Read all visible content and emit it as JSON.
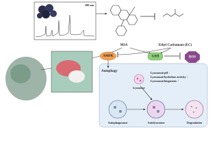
{
  "chromatogram": {
    "wavelength": "280 nm"
  },
  "nodes": [
    {
      "label": "M3A"
    },
    {
      "label": "Ethyl Carbamate (EC)"
    },
    {
      "label": "AMPK"
    },
    {
      "label": "GSH"
    },
    {
      "label": "ROS"
    },
    {
      "label": "Autophagy"
    },
    {
      "label": "Lysosome"
    },
    {
      "label": "Autophagosome"
    },
    {
      "label": "Autolysosome"
    },
    {
      "label": "Degradation"
    }
  ],
  "lysosome_effects": [
    "Lysosomal pH ↓",
    "Lysosomal hydrolase activity ↑",
    "Lysosomal biogenesis ↑"
  ]
}
